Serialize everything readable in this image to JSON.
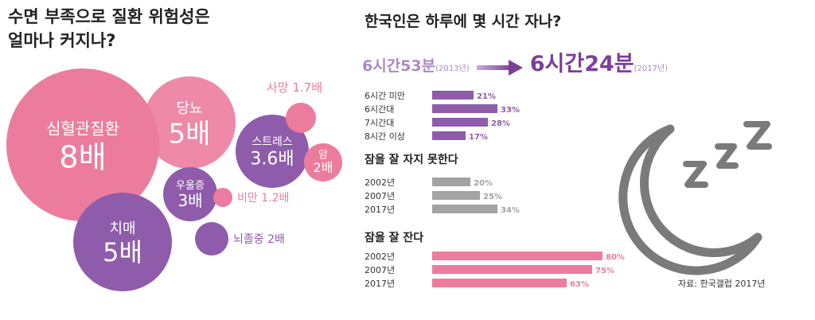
{
  "left": {
    "title_line1": "수면 부족으로 질환 위험성은",
    "title_line2": "얼마나 커지나?",
    "bubbles": [
      {
        "id": "cardio",
        "label": "심혈관질환",
        "value": "8배",
        "color": "#ec7c9e"
      },
      {
        "id": "diabetes",
        "label": "당뇨",
        "value": "5배",
        "color": "#ec7c9e"
      },
      {
        "id": "stress",
        "label": "스트레스",
        "value": "3.6배",
        "color": "#8e5caa"
      },
      {
        "id": "depression",
        "label": "우울증",
        "value": "3배",
        "color": "#8e5caa"
      },
      {
        "id": "dementia",
        "label": "치매",
        "value": "5배",
        "color": "#8e5caa"
      },
      {
        "id": "death",
        "label": "사망",
        "value": "1.7배",
        "color": "#ec7c9e"
      },
      {
        "id": "cancer",
        "label": "암",
        "value": "2배",
        "color": "#ec7c9e"
      },
      {
        "id": "obesity",
        "label": "비만",
        "value": "1.2배",
        "color": "#ec7c9e"
      },
      {
        "id": "stroke",
        "label": "뇌졸중",
        "value": "2배",
        "color": "#8e5caa"
      }
    ]
  },
  "right": {
    "title": "한국인은 하루에 몇 시간 자나?",
    "hours_old": "6시간53분",
    "hours_old_year": "(2013년)",
    "hours_new": "6시간24분",
    "hours_new_year": "(2017년)",
    "section2_title": "잠을 잘 자지 못한다",
    "section3_title": "잠을 잘 잔다",
    "source": "자료: 한국갤럽 2017년"
  },
  "colors": {
    "purple": "#8e5caa",
    "gray": "#a3a3a3",
    "pink": "#ec7c9e",
    "moon": "#7a7a7a"
  },
  "chart_data": [
    {
      "type": "bar",
      "title": "",
      "categories": [
        "6시간 미만",
        "6시간대",
        "7시간대",
        "8시간 이상"
      ],
      "values": [
        21,
        33,
        28,
        17
      ],
      "labels": [
        "21%",
        "33%",
        "28%",
        "17%"
      ],
      "color": "#8e5caa"
    },
    {
      "type": "bar",
      "title": "잠을 잘 자지 못한다",
      "categories": [
        "2002년",
        "2007년",
        "2017년"
      ],
      "values": [
        20,
        25,
        34
      ],
      "labels": [
        "20%",
        "25%",
        "34%"
      ],
      "color": "#a3a3a3"
    },
    {
      "type": "bar",
      "title": "잠을 잘 잔다",
      "categories": [
        "2002년",
        "2007년",
        "2017년"
      ],
      "values": [
        80,
        75,
        63
      ],
      "labels": [
        "80%",
        "75%",
        "63%"
      ],
      "color": "#ec7c9e"
    }
  ]
}
